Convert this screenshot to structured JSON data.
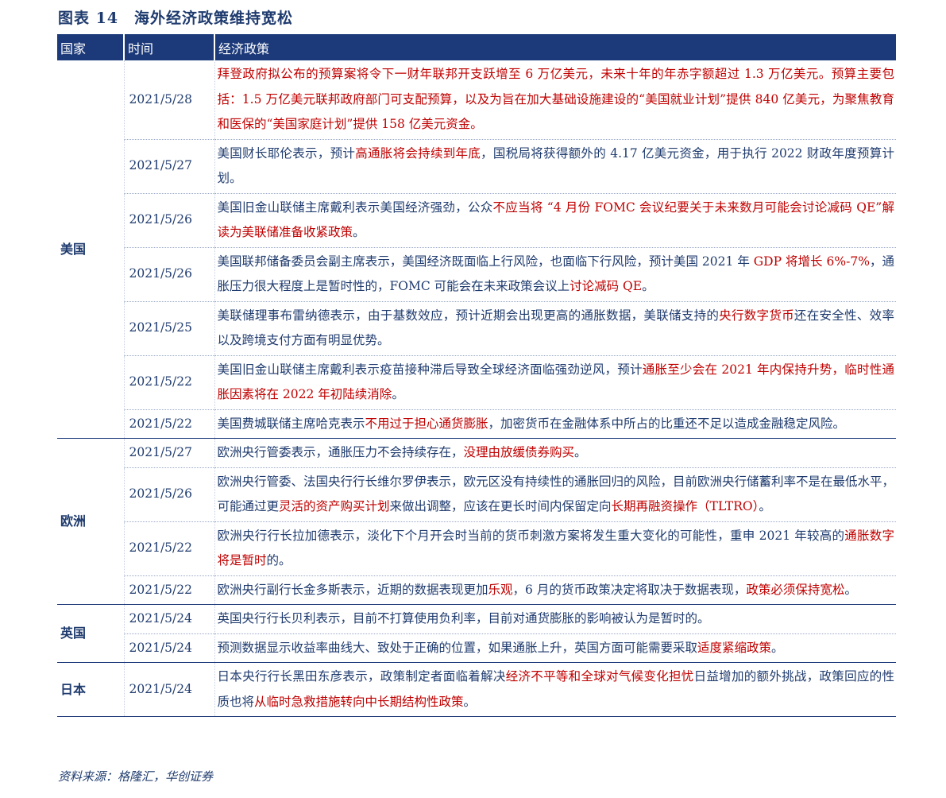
{
  "title": "图表 14　海外经济政策维持宽松",
  "headers": {
    "country": "国家",
    "time": "时间",
    "policy": "经济政策"
  },
  "rows": [
    {
      "country": "美国",
      "date": "2021/5/28",
      "segments": [
        {
          "t": "拜登政府拟公布的预算案将令下一财年联邦开支跃增至 6 万亿美元，未来十年的年赤字额超过 1.3 万亿美元。预算主要包括：1.5 万亿美元联邦政府部门可支配预算，以及为旨在加大基础设施建设的“美国就业计划”提供 840 亿美元，为聚焦教育和医保的“美国家庭计划”提供 158 亿美元资金。",
          "hl": true
        }
      ]
    },
    {
      "country": "",
      "date": "2021/5/27",
      "segments": [
        {
          "t": "美国财长耶伦表示，预计",
          "hl": false
        },
        {
          "t": "高通胀将会持续到年底",
          "hl": true
        },
        {
          "t": "，国税局将获得额外的 4.17 亿美元资金，用于执行 2022 财政年度预算计划。",
          "hl": false
        }
      ]
    },
    {
      "country": "",
      "date": "2021/5/26",
      "segments": [
        {
          "t": "美国旧金山联储主席戴利表示美国经济强劲，公众",
          "hl": false
        },
        {
          "t": "不应当将 “4 月份 FOMC 会议纪要关于未来数月可能会讨论减码 QE”解读为美联储准备收紧政策",
          "hl": true
        },
        {
          "t": "。",
          "hl": false
        }
      ]
    },
    {
      "country": "",
      "date": "2021/5/26",
      "segments": [
        {
          "t": "美国联邦储备委员会副主席表示，美国经济既面临上行风险，也面临下行风险，预计美国 2021 年 ",
          "hl": false
        },
        {
          "t": "GDP 将增长 6%-7%",
          "hl": true
        },
        {
          "t": "，通胀压力很大程度上是暂时性的，FOMC 可能会在未来政策会议上",
          "hl": false
        },
        {
          "t": "讨论减码 QE",
          "hl": true
        },
        {
          "t": "。",
          "hl": false
        }
      ]
    },
    {
      "country": "",
      "date": "2021/5/25",
      "segments": [
        {
          "t": "美联储理事布雷纳德表示，由于基数效应，预计近期会出现更高的通胀数据，美联储支持的",
          "hl": false
        },
        {
          "t": "央行数字货币",
          "hl": true
        },
        {
          "t": "还在安全性、效率以及跨境支付方面有明显优势。",
          "hl": false
        }
      ]
    },
    {
      "country": "",
      "date": "2021/5/22",
      "segments": [
        {
          "t": "美国旧金山联储主席戴利表示疫苗接种滞后导致全球经济面临强劲逆风，预计",
          "hl": false
        },
        {
          "t": "通胀至少会在 2021 年内保持升势，临时性通胀因素将在 2022 年初陆续消除",
          "hl": true
        },
        {
          "t": "。",
          "hl": false
        }
      ]
    },
    {
      "country": "",
      "date": "2021/5/22",
      "segments": [
        {
          "t": "美国费城联储主席哈克表示",
          "hl": false
        },
        {
          "t": "不用过于担心通货膨胀",
          "hl": true
        },
        {
          "t": "，加密货币在金融体系中所占的比重还不足以造成金融稳定风险。",
          "hl": false
        }
      ]
    },
    {
      "country": "欧洲",
      "date": "2021/5/27",
      "segments": [
        {
          "t": "欧洲央行管委表示，通胀压力不会持续存在，",
          "hl": false
        },
        {
          "t": "没理由放缓债券购买",
          "hl": true
        },
        {
          "t": "。",
          "hl": false
        }
      ]
    },
    {
      "country": "",
      "date": "2021/5/26",
      "segments": [
        {
          "t": "欧洲央行管委、法国央行行长维尔罗伊表示，欧元区没有持续性的通胀回归的风险，目前欧洲央行储蓄利率不是在最低水平，可能通过更",
          "hl": false
        },
        {
          "t": "灵活的资产购买计划",
          "hl": true
        },
        {
          "t": "来做出调整，应该在更长时间内保留定向",
          "hl": false
        },
        {
          "t": "长期再融资操作（TLTRO）",
          "hl": true
        },
        {
          "t": "。",
          "hl": false
        }
      ]
    },
    {
      "country": "",
      "date": "2021/5/22",
      "segments": [
        {
          "t": "欧洲央行行长拉加德表示，淡化下个月开会时当前的货币刺激方案将发生重大变化的可能性，重申 2021 年较高的",
          "hl": false
        },
        {
          "t": "通胀数字将是暂时",
          "hl": true
        },
        {
          "t": "的。",
          "hl": false
        }
      ]
    },
    {
      "country": "",
      "date": "2021/5/22",
      "segments": [
        {
          "t": "欧洲央行副行长金多斯表示，近期的数据表现更加",
          "hl": false
        },
        {
          "t": "乐观",
          "hl": true
        },
        {
          "t": "，6 月的货币政策决定将取决于数据表现，",
          "hl": false
        },
        {
          "t": "政策必须保持宽松",
          "hl": true
        },
        {
          "t": "。",
          "hl": false
        }
      ]
    },
    {
      "country": "英国",
      "date": "2021/5/24",
      "segments": [
        {
          "t": "英国央行行长贝利表示，目前不打算使用负利率，目前对通货膨胀的影响被认为是暂时的。",
          "hl": false
        }
      ]
    },
    {
      "country": "",
      "date": "2021/5/24",
      "segments": [
        {
          "t": "预测数据显示收益率曲线大、致处于正确的位置，如果通胀上升，英国方面可能需要采取",
          "hl": false
        },
        {
          "t": "适度紧缩政策",
          "hl": true
        },
        {
          "t": "。",
          "hl": false
        }
      ]
    },
    {
      "country": "日本",
      "date": "2021/5/24",
      "segments": [
        {
          "t": "日本央行行长黑田东彦表示，政策制定者面临着解决",
          "hl": false
        },
        {
          "t": "经济不平等和全球对气候变化担忧",
          "hl": true
        },
        {
          "t": "日益增加的额外挑战，政策回应的性质也将",
          "hl": false
        },
        {
          "t": "从临时急救措施转向中长期结构性政策",
          "hl": true
        },
        {
          "t": "。",
          "hl": false
        }
      ]
    }
  ],
  "source": "资料来源：格隆汇，华创证券",
  "colors": {
    "header_bg": "#1c3a7a",
    "text": "#1f3b6e",
    "highlight": "#c00000"
  }
}
